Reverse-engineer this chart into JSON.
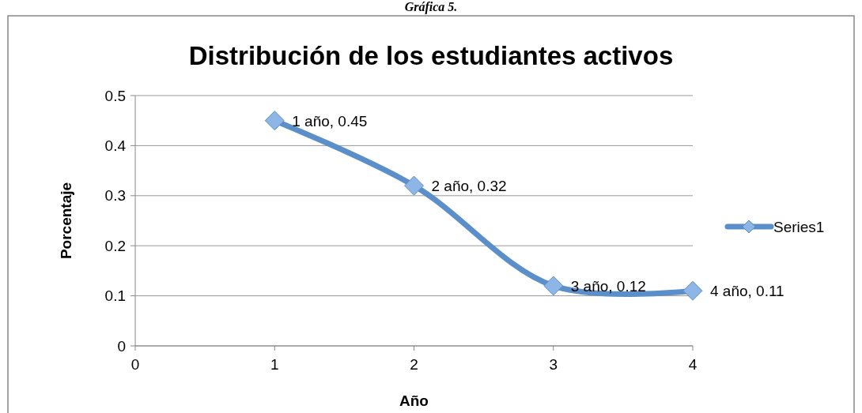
{
  "chart_data": {
    "type": "line",
    "title": "Distribución de los estudiantes activos",
    "xlabel": "Año",
    "ylabel": "Porcentaje",
    "annotations": [
      "Gráfica 5."
    ],
    "x": [
      1,
      2,
      3,
      4
    ],
    "series": [
      {
        "name": "Series1",
        "color": "#5b8fc9",
        "values": [
          0.45,
          0.32,
          0.12,
          0.11
        ],
        "value_labels": [
          "1 año, 0.45",
          "2 año, 0.32",
          "3 año, 0.12",
          "4 año, 0.11"
        ]
      }
    ],
    "xlim": [
      0,
      4
    ],
    "xticks": [
      0,
      1,
      2,
      3,
      4
    ],
    "ylim": [
      0,
      0.5
    ],
    "yticks": [
      0,
      0.1,
      0.2,
      0.3,
      0.4,
      0.5
    ],
    "grid": "y",
    "legend": "right",
    "marker": "diamond",
    "line_style": "solid"
  }
}
